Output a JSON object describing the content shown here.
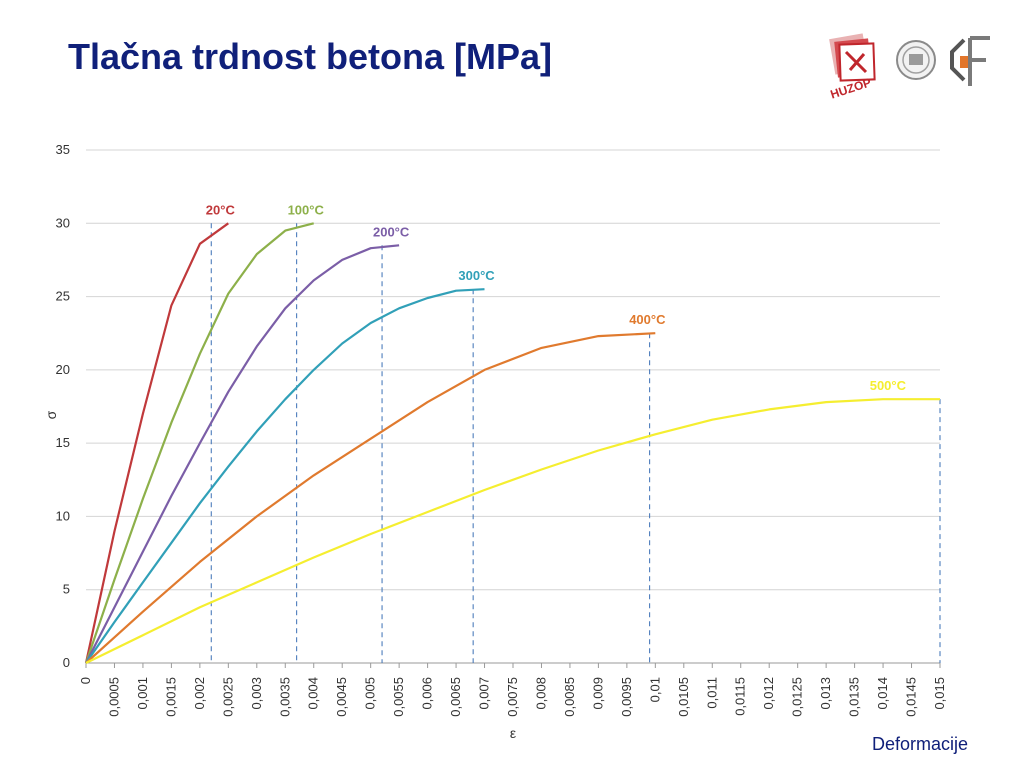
{
  "slide": {
    "title": "Tlačna trdnost betona [MPa]",
    "footer": "Deformacije"
  },
  "logos": {
    "left": {
      "text": "HUZOP",
      "color": "#c0262c"
    },
    "right": {
      "color": "#888888"
    }
  },
  "chart_data": {
    "type": "line",
    "title": "",
    "xlabel": "ε",
    "ylabel": "σ",
    "xlim": [
      0,
      0.015
    ],
    "ylim": [
      0,
      35
    ],
    "grid": true,
    "y_ticks": [
      "0",
      "5",
      "10",
      "15",
      "20",
      "25",
      "30",
      "35"
    ],
    "x_ticks": [
      "0",
      "0,0005",
      "0,001",
      "0,0015",
      "0,002",
      "0,0025",
      "0,003",
      "0,0035",
      "0,004",
      "0,0045",
      "0,005",
      "0,0055",
      "0,006",
      "0,0065",
      "0,007",
      "0,0075",
      "0,008",
      "0,0085",
      "0,009",
      "0,0095",
      "0,01",
      "0,0105",
      "0,011",
      "0,0115",
      "0,012",
      "0,0125",
      "0,013",
      "0,0135",
      "0,014",
      "0,0145",
      "0,015"
    ],
    "series": [
      {
        "name": "20°C",
        "color": "#c0393b",
        "peak_strain": 0.0022,
        "x": [
          0,
          0.0005,
          0.001,
          0.0015,
          0.002,
          0.0025
        ],
        "y": [
          0,
          9,
          17,
          24.4,
          28.6,
          30
        ]
      },
      {
        "name": "100°C",
        "color": "#8db04a",
        "peak_strain": 0.0037,
        "x": [
          0,
          0.0005,
          0.001,
          0.0015,
          0.002,
          0.0025,
          0.003,
          0.0035,
          0.004
        ],
        "y": [
          0,
          5.7,
          11.2,
          16.4,
          21.1,
          25.2,
          27.9,
          29.5,
          30
        ]
      },
      {
        "name": "200°C",
        "color": "#7b5ea7",
        "peak_strain": 0.0052,
        "x": [
          0,
          0.0005,
          0.001,
          0.0015,
          0.002,
          0.0025,
          0.003,
          0.0035,
          0.004,
          0.0045,
          0.005,
          0.0055
        ],
        "y": [
          0,
          3.8,
          7.6,
          11.4,
          15,
          18.5,
          21.6,
          24.2,
          26.1,
          27.5,
          28.3,
          28.5
        ]
      },
      {
        "name": "300°C",
        "color": "#31a0b8",
        "peak_strain": 0.0068,
        "x": [
          0,
          0.0005,
          0.001,
          0.0015,
          0.002,
          0.0025,
          0.003,
          0.0035,
          0.004,
          0.0045,
          0.005,
          0.0055,
          0.006,
          0.0065,
          0.007
        ],
        "y": [
          0,
          2.8,
          5.5,
          8.2,
          10.9,
          13.4,
          15.8,
          18,
          20,
          21.8,
          23.2,
          24.2,
          24.9,
          25.4,
          25.5
        ]
      },
      {
        "name": "400°C",
        "color": "#e07a2e",
        "peak_strain": 0.0099,
        "x": [
          0,
          0.001,
          0.002,
          0.003,
          0.004,
          0.005,
          0.006,
          0.007,
          0.008,
          0.009,
          0.01
        ],
        "y": [
          0,
          3.5,
          6.9,
          10,
          12.8,
          15.3,
          17.8,
          20,
          21.5,
          22.3,
          22.5
        ]
      },
      {
        "name": "500°C",
        "color": "#f5ee30",
        "peak_strain": 0.015,
        "x": [
          0,
          0.001,
          0.002,
          0.003,
          0.004,
          0.005,
          0.006,
          0.007,
          0.008,
          0.009,
          0.01,
          0.011,
          0.012,
          0.013,
          0.014,
          0.015
        ],
        "y": [
          0,
          1.9,
          3.8,
          5.5,
          7.2,
          8.8,
          10.3,
          11.8,
          13.2,
          14.5,
          15.6,
          16.6,
          17.3,
          17.8,
          18,
          18
        ]
      }
    ]
  }
}
